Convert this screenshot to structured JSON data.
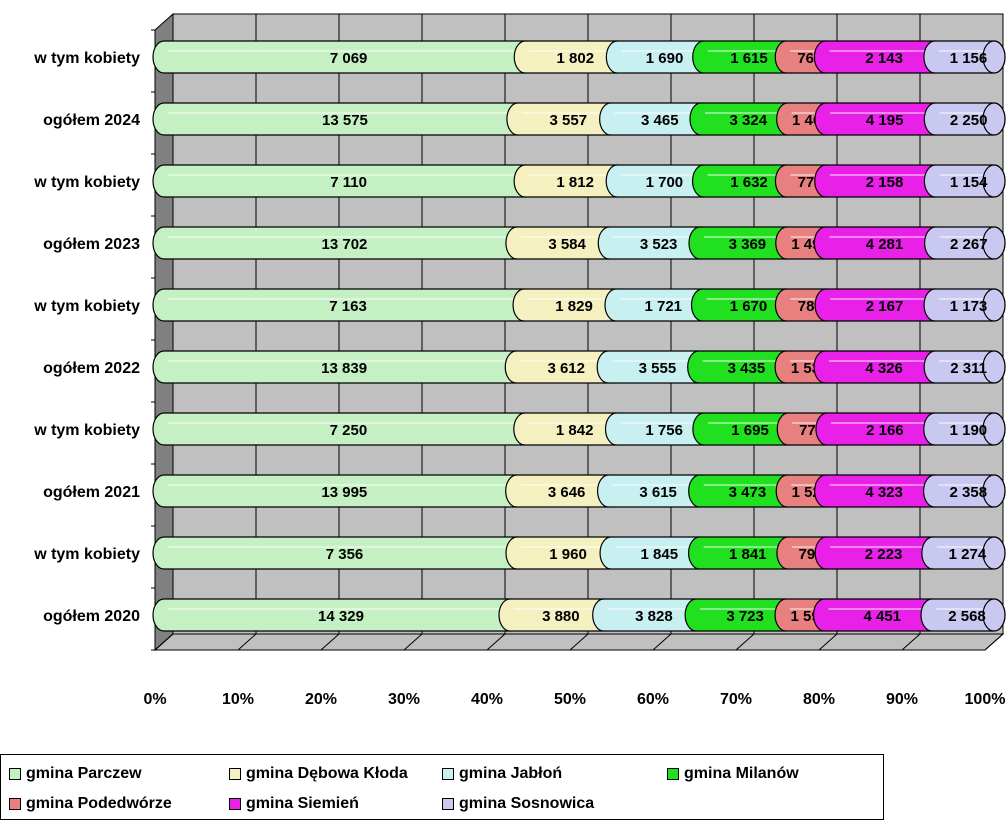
{
  "chart_data": {
    "type": "bar",
    "orientation": "horizontal",
    "stacked": "percent",
    "categories": [
      "w tym kobiety",
      "ogółem 2024",
      "w tym kobiety",
      "ogółem 2023",
      "w tym kobiety",
      "ogółem 2022",
      "w tym kobiety",
      "ogółem 2021",
      "w tym kobiety",
      "ogółem 2020"
    ],
    "x_ticks": [
      "0%",
      "10%",
      "20%",
      "30%",
      "40%",
      "50%",
      "60%",
      "70%",
      "80%",
      "90%",
      "100%"
    ],
    "xlim": [
      0,
      100
    ],
    "grid": true,
    "legend_position": "bottom",
    "series": [
      {
        "name": "gmina Parczew",
        "color": "#c4f0c4",
        "values": [
          7069,
          13575,
          7110,
          13702,
          7163,
          13839,
          7250,
          13995,
          7356,
          14329
        ],
        "labels": [
          "7 069",
          "13 575",
          "7 110",
          "13 702",
          "7 163",
          "13 839",
          "7 250",
          "13 995",
          "7 356",
          "14 329"
        ]
      },
      {
        "name": "gmina Dębowa Kłoda",
        "color": "#f5f0c0",
        "values": [
          1802,
          3557,
          1812,
          3584,
          1829,
          3612,
          1842,
          3646,
          1960,
          3880
        ],
        "labels": [
          "1 802",
          "3 557",
          "1 812",
          "3 584",
          "1 829",
          "3 612",
          "1 842",
          "3 646",
          "1 960",
          "3 880"
        ]
      },
      {
        "name": "gmina Jabłoń",
        "color": "#c8f0f0",
        "values": [
          1690,
          3465,
          1700,
          3523,
          1721,
          3555,
          1756,
          3615,
          1845,
          3828
        ],
        "labels": [
          "1 690",
          "3 465",
          "1 700",
          "3 523",
          "1 721",
          "3 555",
          "1 756",
          "3 615",
          "1 845",
          "3 828"
        ]
      },
      {
        "name": "gmina Milanów",
        "color": "#20e020",
        "values": [
          1615,
          3324,
          1632,
          3369,
          1670,
          3435,
          1695,
          3473,
          1841,
          3723
        ],
        "labels": [
          "1 615",
          "3 324",
          "1 632",
          "3 369",
          "1 670",
          "3 435",
          "1 695",
          "3 473",
          "1 841",
          "3 723"
        ]
      },
      {
        "name": "gmina Podedwórze",
        "color": "#e88080",
        "values": [
          766,
          1469,
          774,
          1497,
          789,
          1530,
          778,
          1524,
          797,
          1593
        ],
        "labels": [
          "766",
          "1 469",
          "774",
          "1 497",
          "789",
          "1 530",
          "778",
          "1 524",
          "797",
          "1 593"
        ]
      },
      {
        "name": "gmina Siemień",
        "color": "#e820e8",
        "values": [
          2143,
          4195,
          2158,
          4281,
          2167,
          4326,
          2166,
          4323,
          2223,
          4451
        ],
        "labels": [
          "2 143",
          "4 195",
          "2 158",
          "4 281",
          "2 167",
          "4 326",
          "2 166",
          "4 323",
          "2 223",
          "4 451"
        ]
      },
      {
        "name": "gmina Sosnowica",
        "color": "#c8c8f0",
        "values": [
          1156,
          2250,
          1154,
          2267,
          1173,
          2311,
          1190,
          2358,
          1274,
          2568
        ],
        "labels": [
          "1 156",
          "2 250",
          "1 154",
          "2 267",
          "1 173",
          "2 311",
          "1 190",
          "2 358",
          "1 274",
          "2 568"
        ]
      }
    ]
  },
  "colors": {
    "plot_wall": "#c0c0c0",
    "side_wall": "#808080",
    "floor": "#c0c0c0"
  }
}
